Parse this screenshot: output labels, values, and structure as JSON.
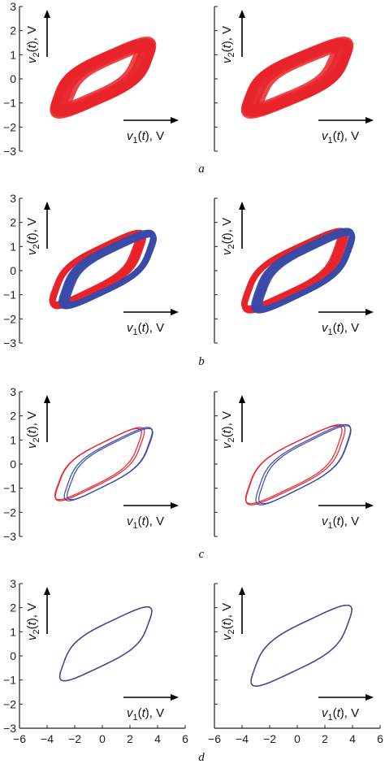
{
  "colors": {
    "red": "#e8242a",
    "blue": "#3a4aa8",
    "axis": "#222222"
  },
  "panel_letters": [
    "a",
    "b",
    "c",
    "d"
  ],
  "chart_data": [
    {
      "type": "scatter",
      "panel": "a",
      "column": "left",
      "x_variable": "v1(t), V",
      "y_variable": "v2(t), V",
      "xlim": [
        -6,
        6
      ],
      "ylim": [
        -3,
        3
      ],
      "yticks": [
        3,
        2,
        1,
        0,
        -1,
        -2,
        -3
      ],
      "xticks_shown": false,
      "grid": false,
      "series": [
        {
          "color": "red",
          "style": "dense band",
          "attractor": {
            "right_peak": [
              2.1,
              1.9
            ],
            "left_peak": [
              -1.4,
              -1.8
            ],
            "x_extent": [
              -4.0,
              4.1
            ],
            "band_thickness": 1.2
          }
        }
      ]
    },
    {
      "type": "scatter",
      "panel": "a",
      "column": "right",
      "x_variable": "v1(t), V",
      "y_variable": "v2(t), V",
      "xlim": [
        -6,
        6
      ],
      "ylim": [
        -3,
        3
      ],
      "xticks_shown": false,
      "grid": false,
      "series": [
        {
          "color": "red",
          "style": "dense band",
          "attractor": {
            "right_peak": [
              2.2,
              1.9
            ],
            "left_peak": [
              -1.5,
              -1.8
            ],
            "x_extent": [
              -4.3,
              4.3
            ],
            "band_thickness": 1.2
          }
        }
      ]
    },
    {
      "type": "scatter",
      "panel": "b",
      "column": "left",
      "x_variable": "v1(t), V",
      "y_variable": "v2(t), V",
      "xlim": [
        -6,
        6
      ],
      "ylim": [
        -3,
        3
      ],
      "yticks": [
        3,
        2,
        1,
        0,
        -1,
        -2,
        -3
      ],
      "xticks_shown": false,
      "grid": false,
      "series": [
        {
          "color": "red",
          "style": "band",
          "attractor": {
            "right_peak": [
              2.1,
              1.9
            ],
            "left_peak": [
              -1.4,
              -1.8
            ],
            "x_extent": [
              -4.0,
              3.4
            ],
            "band_thickness": 0.55
          }
        },
        {
          "color": "blue",
          "style": "band",
          "attractor": {
            "right_peak": [
              2.1,
              1.9
            ],
            "left_peak": [
              -1.4,
              -1.8
            ],
            "x_extent": [
              -3.4,
              4.1
            ],
            "band_thickness": 0.55
          }
        }
      ]
    },
    {
      "type": "scatter",
      "panel": "b",
      "column": "right",
      "x_variable": "v1(t), V",
      "y_variable": "v2(t), V",
      "xlim": [
        -6,
        6
      ],
      "ylim": [
        -3,
        3
      ],
      "xticks_shown": false,
      "grid": false,
      "series": [
        {
          "color": "red",
          "style": "band",
          "attractor": {
            "right_peak": [
              2.2,
              2.0
            ],
            "left_peak": [
              -1.5,
              -2.0
            ],
            "x_extent": [
              -4.3,
              4.0
            ],
            "band_thickness": 0.55
          }
        },
        {
          "color": "blue",
          "style": "band",
          "attractor": {
            "right_peak": [
              2.2,
              2.0
            ],
            "left_peak": [
              -1.5,
              -2.0
            ],
            "x_extent": [
              -3.6,
              4.4
            ],
            "band_thickness": 0.55
          }
        }
      ]
    },
    {
      "type": "line",
      "panel": "c",
      "column": "left",
      "x_variable": "v1(t), V",
      "y_variable": "v2(t), V",
      "xlim": [
        -6,
        6
      ],
      "ylim": [
        -3,
        3
      ],
      "yticks": [
        3,
        2,
        1,
        0,
        -1,
        -2,
        -3
      ],
      "xticks_shown": false,
      "grid": false,
      "series": [
        {
          "color": "red",
          "style": "thin loops",
          "attractor": {
            "right_peak": [
              2.0,
              1.85
            ],
            "left_peak": [
              -1.5,
              -1.85
            ],
            "x_extent": [
              -3.8,
              3.5
            ],
            "band_thickness": 0.35
          }
        },
        {
          "color": "blue",
          "style": "thin loops",
          "attractor": {
            "right_peak": [
              2.0,
              1.85
            ],
            "left_peak": [
              -1.5,
              -1.85
            ],
            "x_extent": [
              -3.2,
              4.0
            ],
            "band_thickness": 0.35
          }
        }
      ]
    },
    {
      "type": "line",
      "panel": "c",
      "column": "right",
      "x_variable": "v1(t), V",
      "y_variable": "v2(t), V",
      "xlim": [
        -6,
        6
      ],
      "ylim": [
        -3,
        3
      ],
      "xticks_shown": false,
      "grid": false,
      "series": [
        {
          "color": "red",
          "style": "thin loops",
          "attractor": {
            "right_peak": [
              2.2,
              2.0
            ],
            "left_peak": [
              -1.4,
              -2.05
            ],
            "x_extent": [
              -4.2,
              4.0
            ],
            "band_thickness": 0.3
          }
        },
        {
          "color": "blue",
          "style": "thin loops",
          "attractor": {
            "right_peak": [
              2.2,
              2.0
            ],
            "left_peak": [
              -1.4,
              -2.05
            ],
            "x_extent": [
              -3.5,
              4.3
            ],
            "band_thickness": 0.3
          }
        }
      ]
    },
    {
      "type": "line",
      "panel": "d",
      "column": "left",
      "x_variable": "v1(t), V",
      "y_variable": "v2(t), V",
      "xlim": [
        -6,
        6
      ],
      "ylim": [
        -3,
        3
      ],
      "yticks": [
        3,
        2,
        1,
        0,
        -1,
        -2,
        -3
      ],
      "xticks": [
        -6,
        -4,
        -2,
        0,
        2,
        4,
        6
      ],
      "grid": false,
      "series": [
        {
          "color": "red",
          "style": "single loop",
          "attractor": {
            "right_peak": [
              2.0,
              2.35
            ],
            "left_peak": [
              -1.6,
              -1.35
            ],
            "x_extent": [
              -3.5,
              4.0
            ],
            "band_thickness": 0.06
          }
        },
        {
          "color": "blue",
          "style": "single loop",
          "attractor": {
            "right_peak": [
              2.0,
              2.35
            ],
            "left_peak": [
              -1.6,
              -1.35
            ],
            "x_extent": [
              -3.5,
              4.0
            ],
            "band_thickness": 0.06
          }
        }
      ]
    },
    {
      "type": "line",
      "panel": "d",
      "column": "right",
      "x_variable": "v1(t), V",
      "y_variable": "v2(t), V",
      "xlim": [
        -6,
        6
      ],
      "ylim": [
        -3,
        3
      ],
      "xticks": [
        -6,
        -4,
        -2,
        0,
        2,
        4,
        6
      ],
      "grid": false,
      "series": [
        {
          "color": "red",
          "style": "single loop",
          "attractor": {
            "right_peak": [
              2.2,
              2.45
            ],
            "left_peak": [
              -1.8,
              -1.6
            ],
            "x_extent": [
              -3.8,
              4.4
            ],
            "band_thickness": 0.06
          }
        },
        {
          "color": "blue",
          "style": "single loop",
          "attractor": {
            "right_peak": [
              2.2,
              2.45
            ],
            "left_peak": [
              -1.8,
              -1.6
            ],
            "x_extent": [
              -3.8,
              4.4
            ],
            "band_thickness": 0.06
          }
        }
      ]
    }
  ]
}
